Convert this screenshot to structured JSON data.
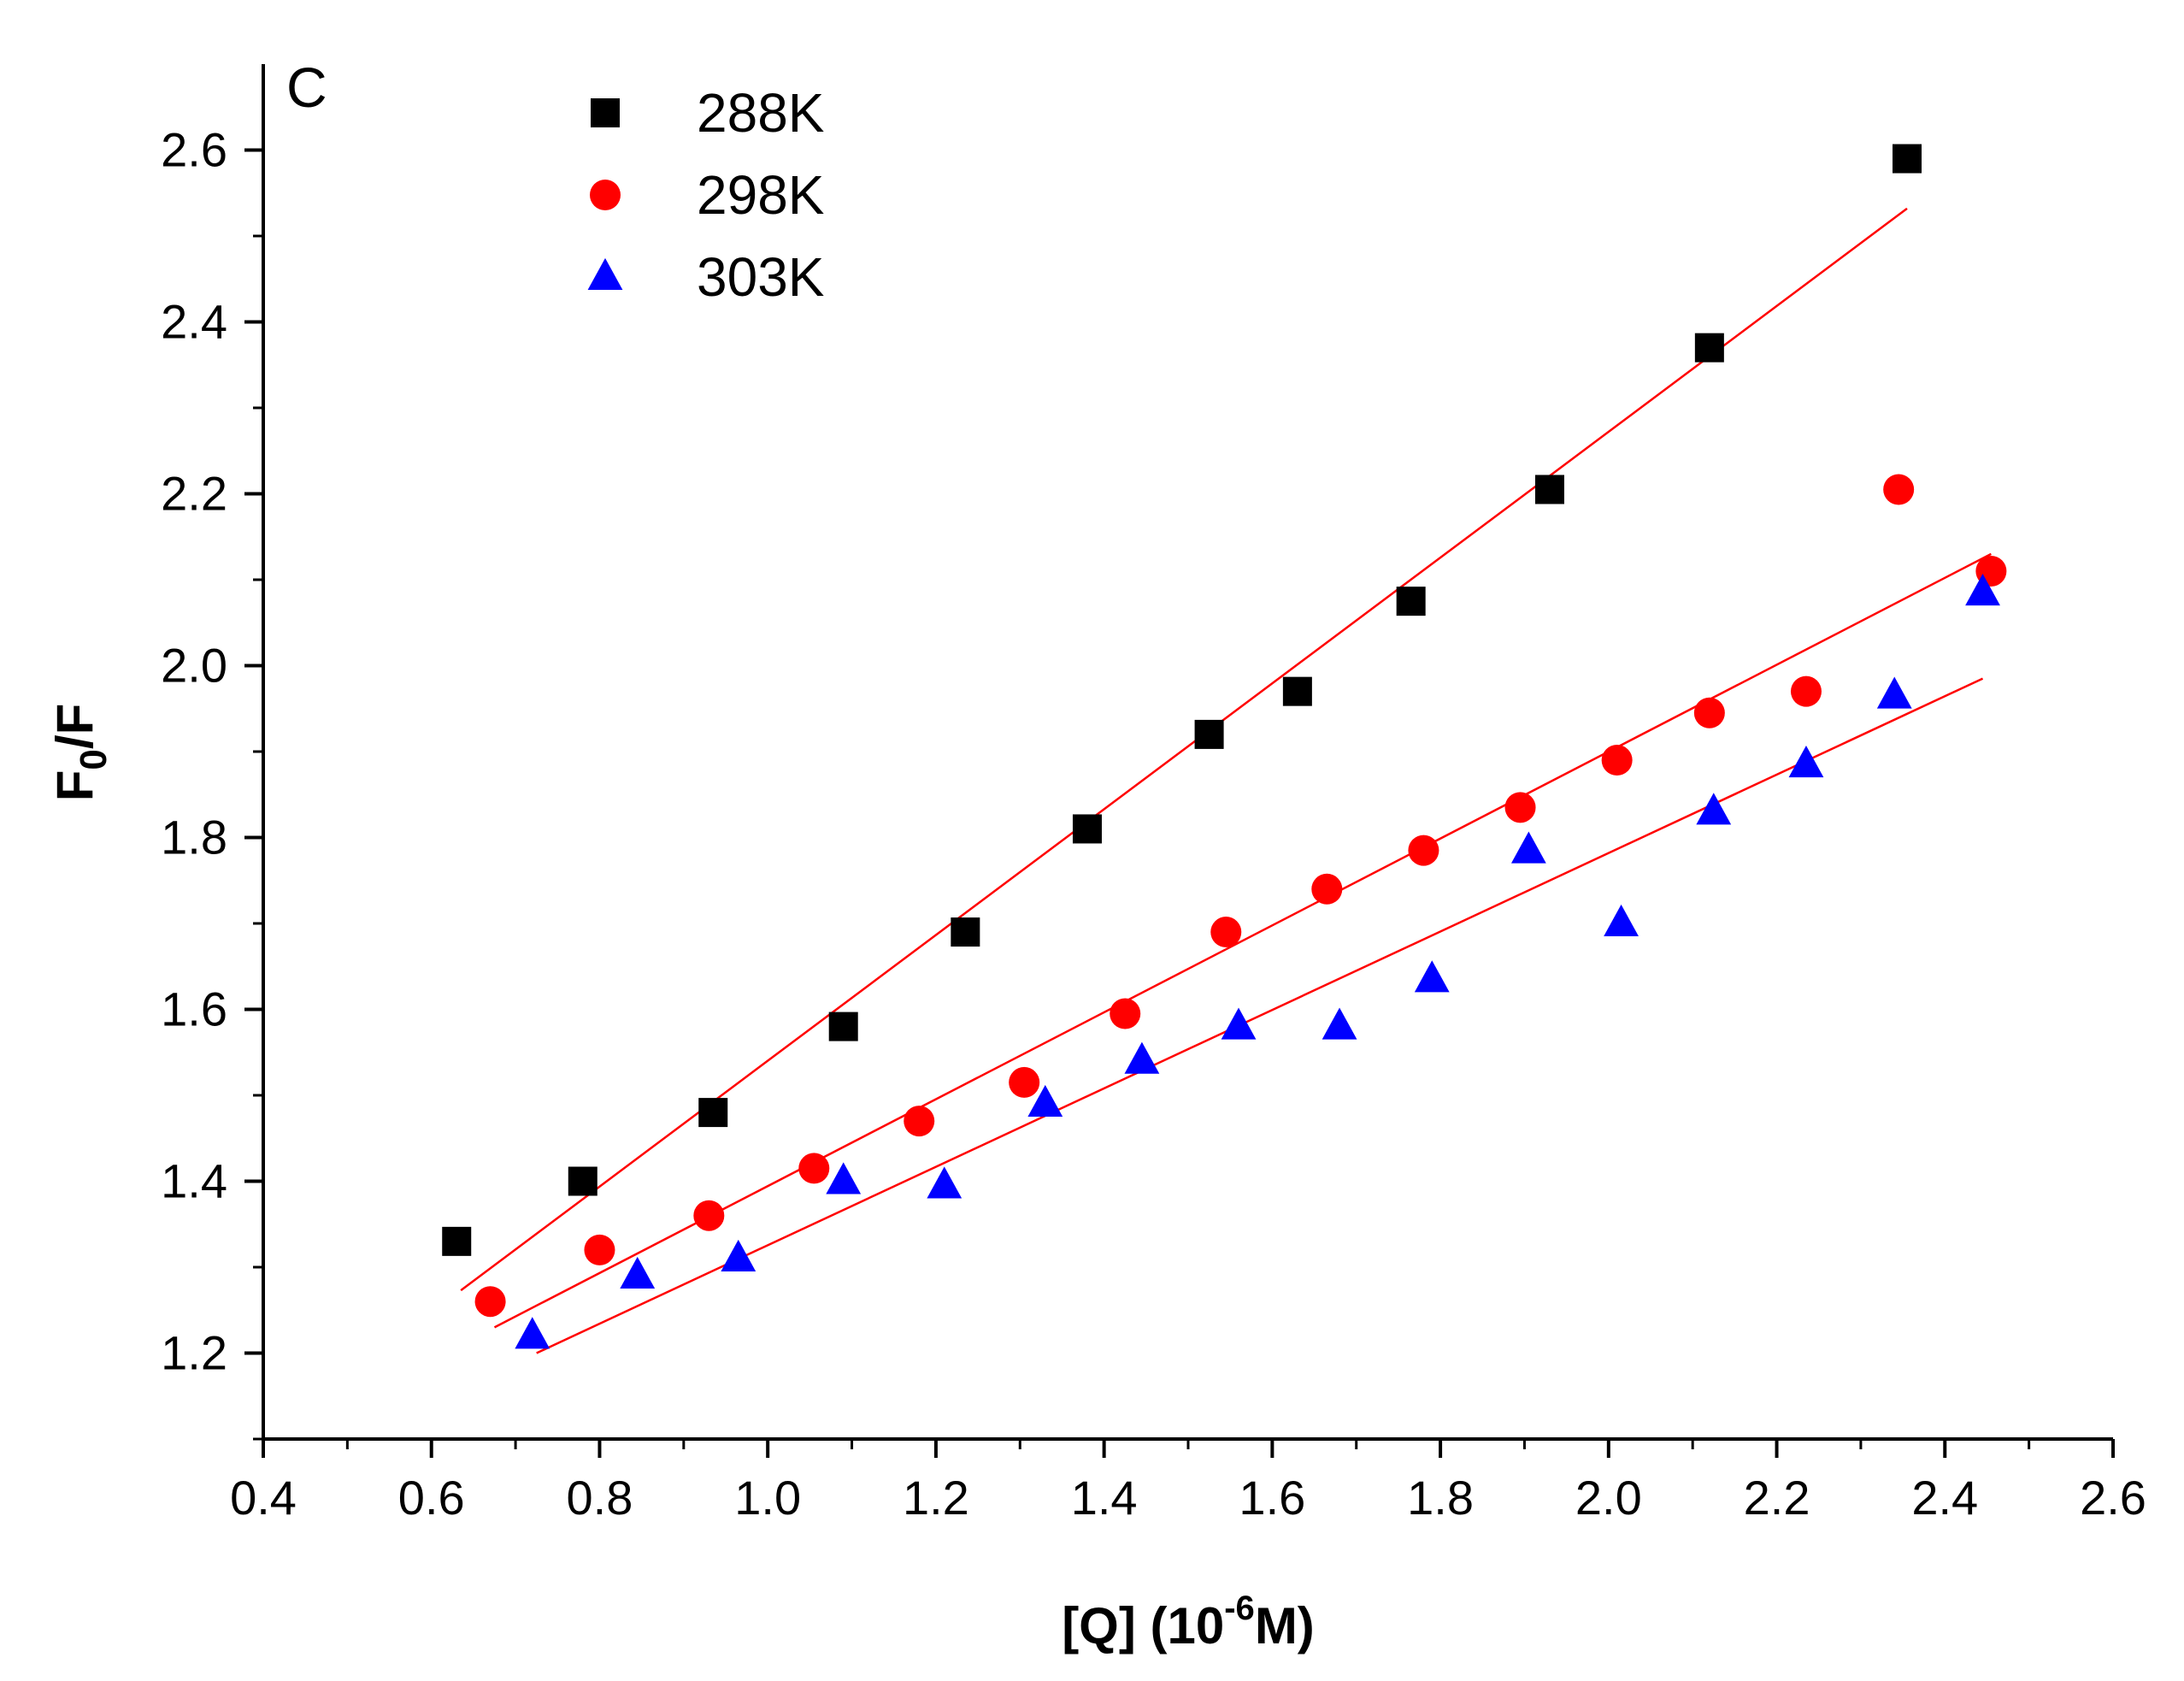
{
  "chart_data": {
    "type": "scatter",
    "panel_label": "C",
    "xlabel": {
      "main": "[Q] (10",
      "sup": "-6",
      "tail": "M)"
    },
    "ylabel": {
      "main": "F",
      "sub": "0",
      "tail": "/F"
    },
    "xlim": [
      0.4,
      2.6
    ],
    "ylim": [
      1.1,
      2.7
    ],
    "x_ticks": [
      "0.4",
      "0.6",
      "0.8",
      "1.0",
      "1.2",
      "1.4",
      "1.6",
      "1.8",
      "2.0",
      "2.2",
      "2.4",
      "2.6"
    ],
    "y_ticks": [
      "1.2",
      "1.4",
      "1.6",
      "1.8",
      "2.0",
      "2.2",
      "2.4",
      "2.6"
    ],
    "legend_position": "top-left",
    "series": [
      {
        "name": "288K",
        "marker": "square",
        "color": "#000000",
        "x": [
          0.63,
          0.78,
          0.935,
          1.09,
          1.235,
          1.38,
          1.525,
          1.63,
          1.765,
          1.93,
          2.12,
          2.355
        ],
        "y": [
          1.33,
          1.4,
          1.48,
          1.58,
          1.69,
          1.81,
          1.92,
          1.97,
          2.075,
          2.205,
          2.37,
          2.59
        ],
        "fit": {
          "x": [
            0.635,
            2.355
          ],
          "y": [
            1.273,
            2.532
          ],
          "color": "#ff0000"
        }
      },
      {
        "name": "298K",
        "marker": "circle",
        "color": "#ff0000",
        "x": [
          0.67,
          0.8,
          0.93,
          1.055,
          1.18,
          1.305,
          1.425,
          1.545,
          1.665,
          1.78,
          1.895,
          2.01,
          2.12,
          2.235,
          2.345,
          2.455
        ],
        "y": [
          1.26,
          1.32,
          1.36,
          1.415,
          1.47,
          1.515,
          1.595,
          1.69,
          1.74,
          1.785,
          1.835,
          1.89,
          1.945,
          1.97,
          2.205,
          2.11
        ],
        "fit": {
          "x": [
            0.675,
            2.455
          ],
          "y": [
            1.23,
            2.13
          ],
          "color": "#ff0000"
        }
      },
      {
        "name": "303K",
        "marker": "triangle",
        "color": "#0000ff",
        "x": [
          0.72,
          0.845,
          0.965,
          1.09,
          1.21,
          1.33,
          1.445,
          1.56,
          1.68,
          1.79,
          1.905,
          2.015,
          2.125,
          2.235,
          2.34,
          2.445
        ],
        "y": [
          1.22,
          1.29,
          1.31,
          1.4,
          1.395,
          1.49,
          1.54,
          1.58,
          1.58,
          1.635,
          1.785,
          1.7,
          1.83,
          1.885,
          1.965,
          2.085
        ],
        "fit": {
          "x": [
            0.725,
            2.445
          ],
          "y": [
            1.2,
            1.985
          ],
          "color": "#ff0000"
        }
      }
    ]
  }
}
